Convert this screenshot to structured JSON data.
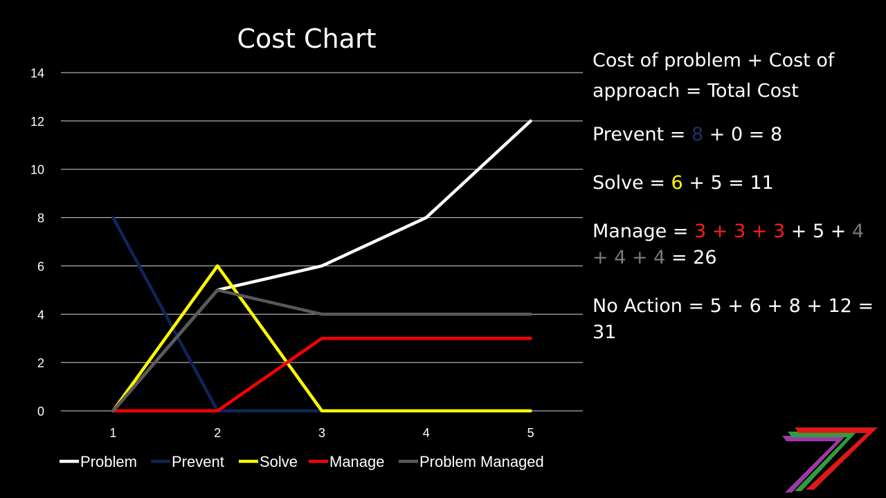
{
  "chart_data": {
    "type": "line",
    "title": "Cost Chart",
    "x": [
      1,
      2,
      3,
      4,
      5
    ],
    "x_ticks": [
      "1",
      "2",
      "3",
      "4",
      "5"
    ],
    "y_ticks": [
      "0",
      "2",
      "4",
      "6",
      "8",
      "10",
      "12",
      "14"
    ],
    "ylim": [
      0,
      14
    ],
    "grid": true,
    "legend_position": "bottom",
    "series": [
      {
        "name": "Problem",
        "color": "#ffffff",
        "values": [
          0,
          5,
          6,
          8,
          12
        ]
      },
      {
        "name": "Prevent",
        "color": "#0f2459",
        "values": [
          8,
          0,
          0,
          0,
          0
        ]
      },
      {
        "name": "Solve",
        "color": "#ffff00",
        "values": [
          0,
          6,
          0,
          0,
          0
        ]
      },
      {
        "name": "Manage",
        "color": "#ff0000",
        "values": [
          0,
          0,
          3,
          3,
          3
        ]
      },
      {
        "name": "Problem Managed",
        "color": "#595959",
        "values": [
          0,
          5,
          4,
          4,
          4
        ]
      }
    ]
  },
  "equations": {
    "header": "Cost of problem + Cost of approach = Total Cost",
    "prevent": {
      "a": "Prevent = ",
      "b": "8",
      "c": " + 0 = 8"
    },
    "solve": {
      "a": "Solve = ",
      "b": "6",
      "c": " + 5 = 11"
    },
    "manage": {
      "a": "Manage = ",
      "b": "3 + 3 + 3",
      "c": " + 5 + ",
      "d": "4 + 4",
      "e": " + 4",
      "f": " = 26"
    },
    "no_action": "No Action = 5 + 6 + 8 + 12 = 31"
  },
  "logo": {
    "name": "logo-7-icon",
    "colors": [
      "#9b3aa6",
      "#2e9e3c",
      "#e01818"
    ]
  }
}
